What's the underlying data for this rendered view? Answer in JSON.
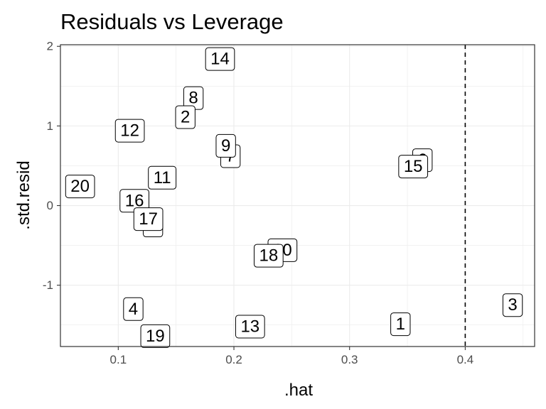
{
  "chart_data": {
    "type": "scatter",
    "title": "Residuals vs Leverage",
    "xlabel": ".hat",
    "ylabel": ".std.resid",
    "xlim": [
      0.05,
      0.46
    ],
    "ylim": [
      -1.77,
      2.02
    ],
    "x_ticks": [
      0.1,
      0.2,
      0.3,
      0.4
    ],
    "x_tick_labels": [
      "0.1",
      "0.2",
      "0.3",
      "0.4"
    ],
    "y_ticks": [
      -1,
      0,
      1,
      2
    ],
    "y_tick_labels": [
      "-1",
      "0",
      "1",
      "2"
    ],
    "reference_line": {
      "x": 0.4,
      "style": "dashed"
    },
    "grid": true,
    "points": [
      {
        "label": "14",
        "x": 0.188,
        "y": 1.84
      },
      {
        "label": "8",
        "x": 0.165,
        "y": 1.35
      },
      {
        "label": "2",
        "x": 0.158,
        "y": 1.11
      },
      {
        "label": "12",
        "x": 0.11,
        "y": 0.94
      },
      {
        "label": "7",
        "x": 0.197,
        "y": 0.62
      },
      {
        "label": "9",
        "x": 0.193,
        "y": 0.75
      },
      {
        "label": "6",
        "x": 0.363,
        "y": 0.57
      },
      {
        "label": "15",
        "x": 0.355,
        "y": 0.49
      },
      {
        "label": "11",
        "x": 0.138,
        "y": 0.35
      },
      {
        "label": "20",
        "x": 0.067,
        "y": 0.24
      },
      {
        "label": "16",
        "x": 0.114,
        "y": 0.06
      },
      {
        "label": "5",
        "x": 0.13,
        "y": -0.25
      },
      {
        "label": "17",
        "x": 0.126,
        "y": -0.17
      },
      {
        "label": "10",
        "x": 0.242,
        "y": -0.56
      },
      {
        "label": "18",
        "x": 0.23,
        "y": -0.63
      },
      {
        "label": "3",
        "x": 0.441,
        "y": -1.25
      },
      {
        "label": "4",
        "x": 0.113,
        "y": -1.3
      },
      {
        "label": "1",
        "x": 0.344,
        "y": -1.49
      },
      {
        "label": "13",
        "x": 0.214,
        "y": -1.52
      },
      {
        "label": "19",
        "x": 0.132,
        "y": -1.64
      }
    ]
  }
}
